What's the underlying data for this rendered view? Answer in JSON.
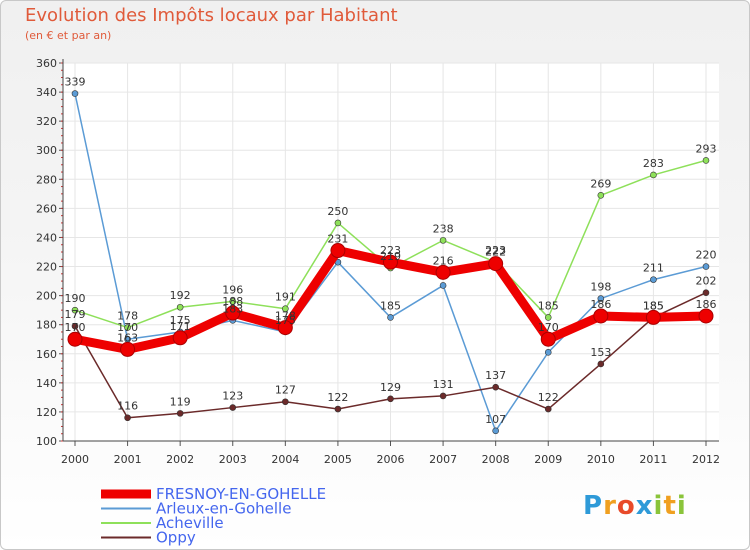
{
  "chart_data": {
    "type": "line",
    "title": "Evolution des Impôts locaux par Habitant",
    "subtitle": "(en € et par an)",
    "xlabel": "",
    "ylabel": "",
    "x": [
      "2000",
      "2001",
      "2002",
      "2003",
      "2004",
      "2005",
      "2006",
      "2007",
      "2008",
      "2009",
      "2010",
      "2011",
      "2012"
    ],
    "y_ticks": [
      "100",
      "120",
      "140",
      "160",
      "180",
      "200",
      "220",
      "240",
      "260",
      "280",
      "300",
      "320",
      "340",
      "360"
    ],
    "ylim": [
      100,
      360
    ],
    "grid": true,
    "legend_position": "bottom-left",
    "series": [
      {
        "name": "Arleux-en-Gohelle",
        "color": "#5b9bd5",
        "values": [
          339,
          170,
          175,
          183,
          175,
          223,
          185,
          207,
          107,
          161,
          198,
          211,
          220
        ],
        "labels": [
          "339",
          "170",
          "175",
          "183",
          "175",
          "",
          "185",
          "",
          "107",
          "",
          "198",
          "211",
          "220"
        ]
      },
      {
        "name": "Acheville",
        "color": "#8ee05a",
        "values": [
          190,
          178,
          192,
          196,
          191,
          250,
          219,
          238,
          223,
          185,
          269,
          283,
          293
        ],
        "labels": [
          "190",
          "178",
          "192",
          "196",
          "191",
          "250",
          "219",
          "238",
          "223",
          "185",
          "269",
          "283",
          "293"
        ]
      },
      {
        "name": "Oppy",
        "color": "#6b2a2a",
        "values": [
          179,
          116,
          119,
          123,
          127,
          122,
          129,
          131,
          137,
          122,
          153,
          185,
          202
        ],
        "labels": [
          "179",
          "116",
          "119",
          "123",
          "127",
          "122",
          "129",
          "131",
          "137",
          "122",
          "153",
          "185",
          "202"
        ]
      },
      {
        "name": "FRESNOY-EN-GOHELLE",
        "color": "#ee0000",
        "values": [
          170,
          163,
          171,
          188,
          178,
          231,
          223,
          216,
          222,
          170,
          186,
          185,
          186
        ],
        "labels": [
          "170",
          "163",
          "171",
          "188",
          "178",
          "231",
          "223",
          "216",
          "222",
          "170",
          "186",
          "185",
          "186"
        ]
      }
    ],
    "legend": [
      "FRESNOY-EN-GOHELLE",
      "Arleux-en-Gohelle",
      "Acheville",
      "Oppy"
    ]
  },
  "logo": {
    "letters": [
      "P",
      "r",
      "o",
      "x",
      "i",
      "t",
      "i"
    ],
    "colors": [
      "#2e9ad8",
      "#f0a020",
      "#e84a2a",
      "#2e9ad8",
      "#8ac43a",
      "#f0a020",
      "#8ac43a"
    ]
  }
}
